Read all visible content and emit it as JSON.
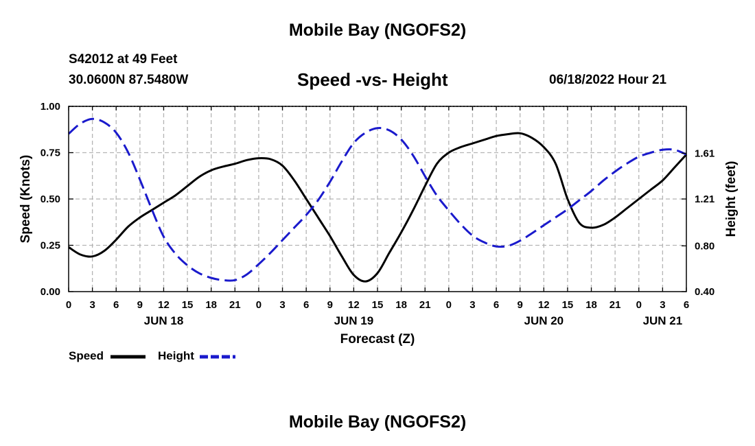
{
  "header": {
    "title": "Mobile Bay (NGOFS2)",
    "station": "S42012 at 49 Feet",
    "coordinates": "30.0600N  87.5480W",
    "chart_title": "Speed -vs- Height",
    "datetime": "06/18/2022 Hour 21"
  },
  "footer": {
    "title": "Mobile Bay (NGOFS2)"
  },
  "legend": {
    "speed_label": "Speed",
    "height_label": "Height"
  },
  "colors": {
    "speed": "#000000",
    "height": "#1a1acc",
    "grid": "#b4b4b4"
  },
  "chart_data": {
    "type": "line",
    "title": "Speed -vs- Height",
    "xlabel": "Forecast (Z)",
    "ylabel": "Speed (Knots)",
    "y2label": "Height (feet)",
    "xlim": [
      0,
      78
    ],
    "ylim": [
      0,
      1.0
    ],
    "y2lim": [
      0.4,
      2.02
    ],
    "x_unit": "hours from 06/18 00Z",
    "x_ticks": [
      {
        "x": 0,
        "label": "0"
      },
      {
        "x": 3,
        "label": "3"
      },
      {
        "x": 6,
        "label": "6"
      },
      {
        "x": 9,
        "label": "9"
      },
      {
        "x": 12,
        "label": "12"
      },
      {
        "x": 15,
        "label": "15"
      },
      {
        "x": 18,
        "label": "18"
      },
      {
        "x": 21,
        "label": "21"
      },
      {
        "x": 24,
        "label": "0"
      },
      {
        "x": 27,
        "label": "3"
      },
      {
        "x": 30,
        "label": "6"
      },
      {
        "x": 33,
        "label": "9"
      },
      {
        "x": 36,
        "label": "12"
      },
      {
        "x": 39,
        "label": "15"
      },
      {
        "x": 42,
        "label": "18"
      },
      {
        "x": 45,
        "label": "21"
      },
      {
        "x": 48,
        "label": "0"
      },
      {
        "x": 51,
        "label": "3"
      },
      {
        "x": 54,
        "label": "6"
      },
      {
        "x": 57,
        "label": "9"
      },
      {
        "x": 60,
        "label": "12"
      },
      {
        "x": 63,
        "label": "15"
      },
      {
        "x": 66,
        "label": "18"
      },
      {
        "x": 69,
        "label": "21"
      },
      {
        "x": 72,
        "label": "0"
      },
      {
        "x": 75,
        "label": "3"
      },
      {
        "x": 78,
        "label": "6"
      }
    ],
    "day_labels": [
      {
        "x": 12,
        "label": "JUN 18"
      },
      {
        "x": 36,
        "label": "JUN 19"
      },
      {
        "x": 60,
        "label": "JUN 20"
      },
      {
        "x": 75,
        "label": "JUN 21"
      }
    ],
    "y_ticks": [
      {
        "value": 0.0,
        "label": "0.00"
      },
      {
        "value": 0.25,
        "label": "0.25"
      },
      {
        "value": 0.5,
        "label": "0.50"
      },
      {
        "value": 0.75,
        "label": "0.75"
      },
      {
        "value": 1.0,
        "label": "1.00"
      }
    ],
    "y2_ticks": [
      {
        "value": 0.4,
        "label": "0.40"
      },
      {
        "value": 0.8,
        "label": "0.80"
      },
      {
        "value": 1.21,
        "label": "1.21"
      },
      {
        "value": 1.61,
        "label": "1.61"
      }
    ],
    "grid": true,
    "legend_position": "bottom-left",
    "series": [
      {
        "name": "Speed",
        "axis": "left",
        "style": "solid",
        "x": [
          0,
          1.5,
          3,
          4.5,
          6,
          7.5,
          9,
          10.5,
          12,
          13.5,
          15,
          16.5,
          18,
          19.5,
          21,
          22.5,
          24,
          25.5,
          27,
          28.5,
          30,
          31.5,
          33,
          34.5,
          36,
          37.5,
          39,
          40.5,
          42,
          43.5,
          45,
          46.5,
          48,
          49.5,
          51,
          52.5,
          54,
          55.5,
          57,
          58.5,
          60,
          61.5,
          63,
          64.5,
          66,
          67.5,
          69,
          70.5,
          72,
          73.5,
          75,
          76.5,
          78
        ],
        "values": [
          0.24,
          0.2,
          0.19,
          0.22,
          0.28,
          0.35,
          0.4,
          0.44,
          0.48,
          0.52,
          0.57,
          0.62,
          0.655,
          0.675,
          0.69,
          0.71,
          0.72,
          0.715,
          0.68,
          0.6,
          0.5,
          0.4,
          0.3,
          0.19,
          0.09,
          0.055,
          0.1,
          0.21,
          0.32,
          0.44,
          0.57,
          0.69,
          0.75,
          0.78,
          0.8,
          0.82,
          0.84,
          0.85,
          0.855,
          0.83,
          0.78,
          0.69,
          0.5,
          0.37,
          0.345,
          0.36,
          0.4,
          0.45,
          0.5,
          0.55,
          0.6,
          0.67,
          0.74
        ]
      },
      {
        "name": "Height",
        "axis": "right",
        "style": "dashed",
        "x": [
          0,
          1.5,
          3,
          4.5,
          6,
          7.5,
          9,
          10.5,
          12,
          13.5,
          15,
          16.5,
          18,
          19.5,
          21,
          22.5,
          24,
          25.5,
          27,
          28.5,
          30,
          31.5,
          33,
          34.5,
          36,
          37.5,
          39,
          40.5,
          42,
          43.5,
          45,
          46.5,
          48,
          49.5,
          51,
          52.5,
          54,
          55.5,
          57,
          58.5,
          60,
          61.5,
          63,
          64.5,
          66,
          67.5,
          69,
          70.5,
          72,
          73.5,
          75,
          76.5,
          78
        ],
        "values": [
          1.78,
          1.87,
          1.91,
          1.88,
          1.79,
          1.62,
          1.38,
          1.12,
          0.88,
          0.73,
          0.63,
          0.56,
          0.52,
          0.5,
          0.5,
          0.55,
          0.64,
          0.74,
          0.85,
          0.96,
          1.07,
          1.2,
          1.36,
          1.54,
          1.7,
          1.79,
          1.83,
          1.81,
          1.73,
          1.59,
          1.41,
          1.24,
          1.11,
          0.99,
          0.89,
          0.83,
          0.795,
          0.8,
          0.845,
          0.91,
          0.98,
          1.05,
          1.12,
          1.2,
          1.28,
          1.37,
          1.45,
          1.52,
          1.58,
          1.615,
          1.64,
          1.64,
          1.6
        ]
      }
    ]
  }
}
